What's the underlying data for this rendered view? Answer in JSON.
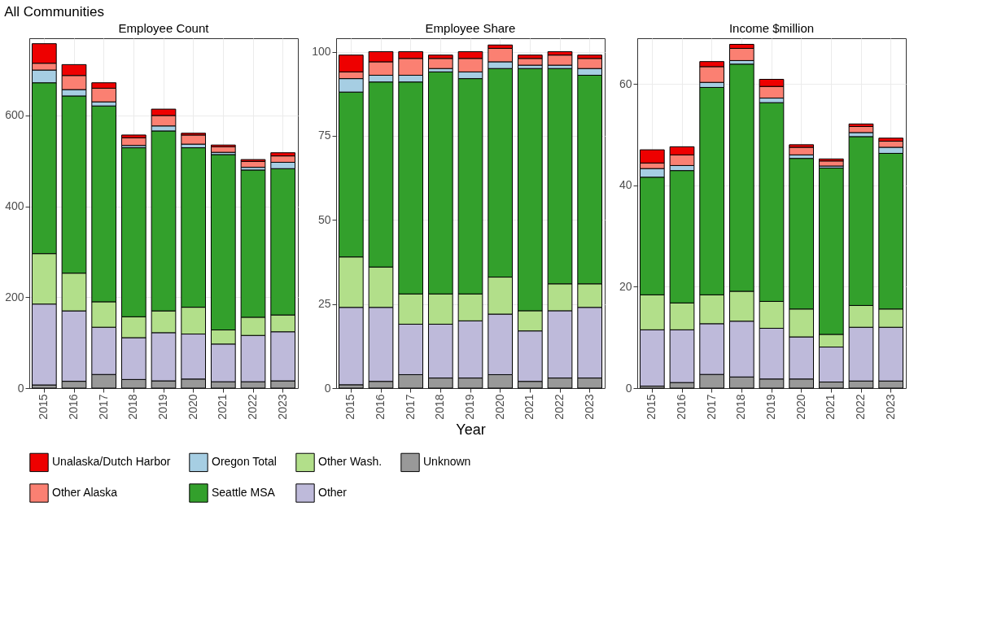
{
  "chart_data": [
    {
      "type": "bar",
      "stacked": true,
      "title": "Employee Count",
      "annotations": [
        "All Communities"
      ],
      "categories": [
        "2015",
        "2016",
        "2017",
        "2018",
        "2019",
        "2020",
        "2021",
        "2022",
        "2023"
      ],
      "ylim": [
        0,
        770
      ],
      "yticks": [
        0,
        200,
        400,
        600
      ],
      "grid": true,
      "legend": "bottom",
      "series": [
        {
          "name": "Unknown",
          "color": "#999999",
          "values": [
            7,
            15,
            30,
            19,
            16,
            20,
            14,
            14,
            16
          ]
        },
        {
          "name": "Other",
          "color": "#bebada",
          "values": [
            178,
            155,
            104,
            92,
            106,
            99,
            83,
            102,
            108
          ]
        },
        {
          "name": "Other Wash.",
          "color": "#b2df8a",
          "values": [
            111,
            83,
            56,
            46,
            48,
            59,
            31,
            40,
            37
          ]
        },
        {
          "name": "Seattle MSA",
          "color": "#33a02c",
          "values": [
            376,
            390,
            431,
            372,
            396,
            351,
            386,
            324,
            322
          ]
        },
        {
          "name": "Oregon Total",
          "color": "#a6cee3",
          "values": [
            28,
            14,
            9,
            5,
            11,
            8,
            5,
            6,
            14
          ]
        },
        {
          "name": "Other Alaska",
          "color": "#fb8072",
          "values": [
            15,
            31,
            30,
            17,
            23,
            20,
            12,
            13,
            14
          ]
        },
        {
          "name": "Unalaska/Dutch Harbor",
          "color": "#ee0000",
          "values": [
            43,
            24,
            12,
            6,
            14,
            4,
            4,
            4,
            7
          ]
        }
      ]
    },
    {
      "type": "bar",
      "stacked": true,
      "title": "Employee Share",
      "xlabel": "Year",
      "categories": [
        "2015",
        "2016",
        "2017",
        "2018",
        "2019",
        "2020",
        "2021",
        "2022",
        "2023"
      ],
      "ylim": [
        0,
        104
      ],
      "yticks": [
        0,
        25,
        50,
        75,
        100
      ],
      "grid": true,
      "legend": "bottom",
      "series": [
        {
          "name": "Unknown",
          "color": "#999999",
          "values": [
            1,
            2,
            4,
            3,
            3,
            4,
            2,
            3,
            3
          ]
        },
        {
          "name": "Other",
          "color": "#bebada",
          "values": [
            23,
            22,
            15,
            16,
            17,
            18,
            15,
            20,
            21
          ]
        },
        {
          "name": "Other Wash.",
          "color": "#b2df8a",
          "values": [
            15,
            12,
            9,
            9,
            8,
            11,
            6,
            8,
            7
          ]
        },
        {
          "name": "Seattle MSA",
          "color": "#33a02c",
          "values": [
            49,
            55,
            63,
            66,
            64,
            62,
            72,
            64,
            62
          ]
        },
        {
          "name": "Oregon Total",
          "color": "#a6cee3",
          "values": [
            4,
            2,
            2,
            1,
            2,
            2,
            1,
            1,
            2
          ]
        },
        {
          "name": "Other Alaska",
          "color": "#fb8072",
          "values": [
            2,
            4,
            5,
            3,
            4,
            4,
            2,
            3,
            3
          ]
        },
        {
          "name": "Unalaska/Dutch Harbor",
          "color": "#ee0000",
          "values": [
            5,
            3,
            2,
            1,
            2,
            1,
            1,
            1,
            1
          ]
        }
      ]
    },
    {
      "type": "bar",
      "stacked": true,
      "title": "Income $million",
      "categories": [
        "2015",
        "2016",
        "2017",
        "2018",
        "2019",
        "2020",
        "2021",
        "2022",
        "2023"
      ],
      "ylim": [
        0,
        69
      ],
      "yticks": [
        0,
        20,
        40,
        60
      ],
      "grid": true,
      "legend": "bottom",
      "series": [
        {
          "name": "Unknown",
          "color": "#999999",
          "values": [
            0.4,
            1.1,
            2.7,
            2.2,
            1.8,
            1.8,
            1.2,
            1.4,
            1.4
          ]
        },
        {
          "name": "Other",
          "color": "#bebada",
          "values": [
            11.1,
            10.4,
            10.0,
            11.0,
            10.0,
            8.3,
            6.9,
            10.6,
            10.6
          ]
        },
        {
          "name": "Other Wash.",
          "color": "#b2df8a",
          "values": [
            6.9,
            5.3,
            5.7,
            5.9,
            5.3,
            5.5,
            2.5,
            4.3,
            3.6
          ]
        },
        {
          "name": "Seattle MSA",
          "color": "#33a02c",
          "values": [
            23.2,
            26.1,
            40.9,
            44.8,
            39.2,
            29.7,
            32.8,
            33.3,
            30.7
          ]
        },
        {
          "name": "Oregon Total",
          "color": "#a6cee3",
          "values": [
            1.7,
            1.0,
            1.0,
            0.7,
            0.9,
            0.7,
            0.4,
            0.8,
            1.2
          ]
        },
        {
          "name": "Other Alaska",
          "color": "#fb8072",
          "values": [
            1.1,
            2.1,
            3.1,
            2.4,
            2.3,
            1.5,
            1.0,
            1.2,
            1.2
          ]
        },
        {
          "name": "Unalaska/Dutch Harbor",
          "color": "#ee0000",
          "values": [
            2.6,
            1.6,
            1.0,
            0.8,
            1.4,
            0.5,
            0.4,
            0.5,
            0.6
          ]
        }
      ]
    }
  ]
}
